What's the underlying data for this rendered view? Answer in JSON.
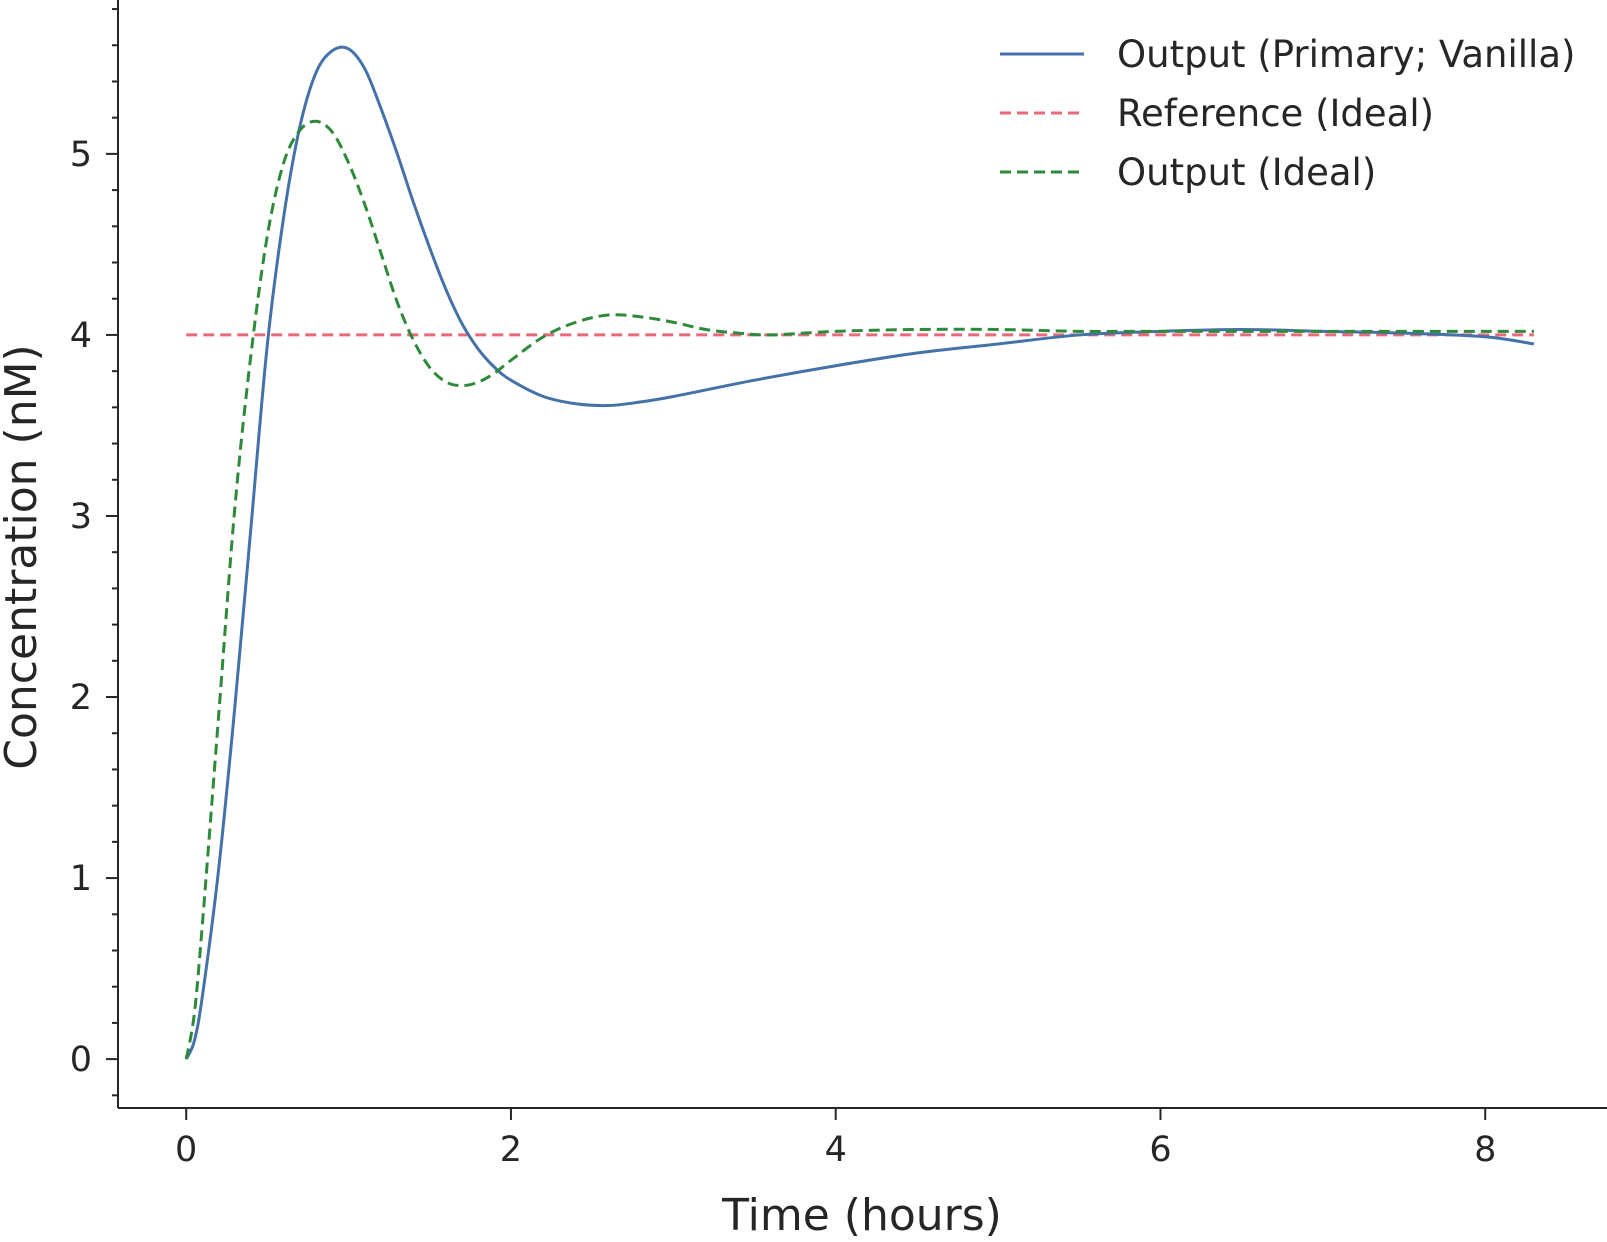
{
  "chart_data": {
    "type": "line",
    "title": "",
    "xlabel": "Time (hours)",
    "ylabel": "Concentration (nM)",
    "xlim": [
      -0.42,
      8.75
    ],
    "ylim": [
      -0.27,
      5.85
    ],
    "x_ticks": [
      0,
      2,
      4,
      6,
      8
    ],
    "x_tick_labels": [
      "0",
      "2",
      "4",
      "6",
      "8"
    ],
    "y_ticks": [
      0,
      1,
      2,
      3,
      4,
      5
    ],
    "y_tick_labels": [
      "0",
      "1",
      "2",
      "3",
      "4",
      "5"
    ],
    "y_minor_step": 0.2,
    "grid": false,
    "legend": "top-right",
    "series": [
      {
        "name": "Output (Primary; Vanilla)",
        "color": "#4472a8",
        "style": "solid",
        "x": [
          0,
          0.05,
          0.1,
          0.2,
          0.3,
          0.4,
          0.5,
          0.6,
          0.7,
          0.8,
          0.9,
          1.0,
          1.1,
          1.2,
          1.3,
          1.4,
          1.5,
          1.6,
          1.7,
          1.8,
          1.9,
          2.0,
          2.2,
          2.4,
          2.6,
          2.8,
          3.0,
          3.5,
          4.0,
          4.5,
          5.0,
          5.5,
          6.0,
          6.5,
          7.0,
          7.5,
          8.0,
          8.3
        ],
        "y": [
          0,
          0.1,
          0.35,
          1.05,
          1.95,
          2.95,
          3.95,
          4.65,
          5.15,
          5.45,
          5.57,
          5.58,
          5.47,
          5.25,
          5.0,
          4.73,
          4.48,
          4.25,
          4.06,
          3.92,
          3.82,
          3.75,
          3.66,
          3.62,
          3.61,
          3.63,
          3.66,
          3.75,
          3.83,
          3.9,
          3.95,
          4.0,
          4.02,
          4.03,
          4.02,
          4.01,
          3.99,
          3.95
        ]
      },
      {
        "name": "Reference (Ideal)",
        "color": "#e86a7a",
        "style": "dashed",
        "x": [
          0,
          8.3
        ],
        "y": [
          4.0,
          4.0
        ]
      },
      {
        "name": "Output (Ideal)",
        "color": "#2e8a3a",
        "style": "dashed",
        "x": [
          0,
          0.05,
          0.1,
          0.2,
          0.3,
          0.4,
          0.5,
          0.6,
          0.7,
          0.8,
          0.9,
          1.0,
          1.1,
          1.2,
          1.3,
          1.4,
          1.5,
          1.6,
          1.7,
          1.8,
          1.9,
          2.0,
          2.2,
          2.4,
          2.6,
          2.8,
          3.0,
          3.2,
          3.4,
          3.6,
          4.0,
          4.5,
          5.0,
          5.5,
          6.0,
          7.0,
          8.0,
          8.3
        ],
        "y": [
          0,
          0.25,
          0.75,
          1.9,
          3.05,
          3.9,
          4.55,
          4.95,
          5.13,
          5.18,
          5.12,
          4.95,
          4.72,
          4.45,
          4.18,
          3.97,
          3.82,
          3.74,
          3.72,
          3.74,
          3.79,
          3.86,
          3.99,
          4.07,
          4.11,
          4.1,
          4.07,
          4.03,
          4.01,
          4.0,
          4.02,
          4.03,
          4.03,
          4.02,
          4.02,
          4.02,
          4.02,
          4.02
        ]
      }
    ]
  }
}
